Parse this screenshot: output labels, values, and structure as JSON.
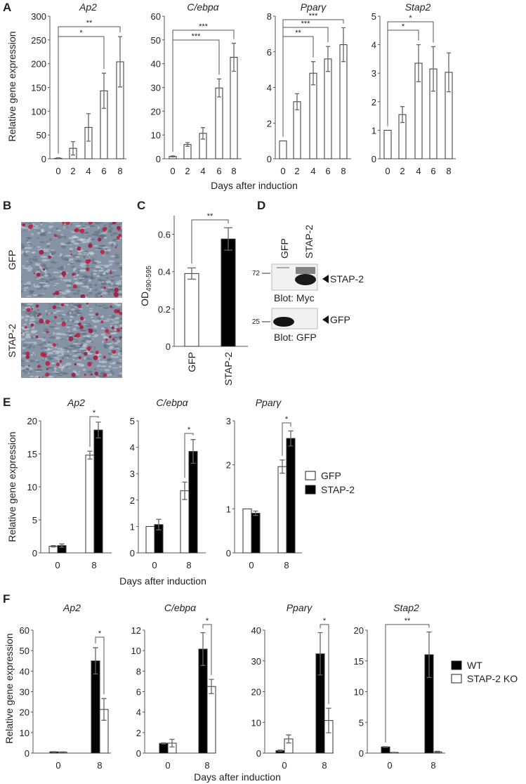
{
  "panels": {
    "A": {
      "label": "A",
      "ylabel": "Relative gene expression",
      "xlabel": "Days after induction"
    },
    "B": {
      "label": "B",
      "images": [
        "GFP",
        "STAP-2"
      ]
    },
    "C": {
      "label": "C",
      "ylabel": "OD",
      "ylabel_sub": "490-595"
    },
    "D": {
      "label": "D",
      "lanes": [
        "GFP",
        "STAP-2"
      ],
      "blots": [
        {
          "marker": "72",
          "band": "STAP-2",
          "caption": "Blot: Myc"
        },
        {
          "marker": "25",
          "band": "GFP",
          "caption": "Blot: GFP"
        }
      ]
    },
    "E": {
      "label": "E",
      "ylabel": "Relative gene expression",
      "xlabel": "Days after induction",
      "legend": [
        {
          "name": "GFP",
          "color": "#ffffff"
        },
        {
          "name": "STAP-2",
          "color": "#000000"
        }
      ]
    },
    "F": {
      "label": "F",
      "ylabel": "Relative gene expression",
      "xlabel": "Days after induction",
      "legend": [
        {
          "name": "WT",
          "color": "#000000"
        },
        {
          "name": "STAP-2 KO",
          "color": "#ffffff"
        }
      ]
    }
  },
  "chart_data": [
    {
      "panel": "A",
      "type": "bar",
      "title": "Ap2",
      "categories": [
        "0",
        "2",
        "4",
        "6",
        "8"
      ],
      "ylim": [
        0,
        300
      ],
      "ystep": 50,
      "series": [
        {
          "color": "#ffffff",
          "values": [
            1,
            22,
            66,
            143,
            204
          ],
          "errors": [
            1,
            14,
            29,
            37,
            53
          ]
        }
      ],
      "significance": [
        {
          "a": [
            0,
            0
          ],
          "b": [
            4,
            0
          ],
          "label": "**"
        },
        {
          "a": [
            0,
            0
          ],
          "b": [
            3,
            0
          ],
          "label": "*"
        }
      ]
    },
    {
      "panel": "A",
      "type": "bar",
      "title": "C/ebpα",
      "categories": [
        "0",
        "2",
        "4",
        "6",
        "8"
      ],
      "ylim": [
        0,
        60
      ],
      "ystep": 10,
      "series": [
        {
          "color": "#ffffff",
          "values": [
            1,
            6,
            10.7,
            29.8,
            42.7
          ],
          "errors": [
            0.2,
            0.8,
            2.4,
            3.8,
            5.9
          ]
        }
      ],
      "significance": [
        {
          "a": [
            0,
            0
          ],
          "b": [
            4,
            0
          ],
          "label": "***"
        },
        {
          "a": [
            0,
            0
          ],
          "b": [
            3,
            0
          ],
          "label": "***"
        }
      ]
    },
    {
      "panel": "A",
      "type": "bar",
      "title": "Pparγ",
      "categories": [
        "0",
        "2",
        "4",
        "6",
        "8"
      ],
      "ylim": [
        0,
        8
      ],
      "ystep": 2,
      "series": [
        {
          "color": "#ffffff",
          "values": [
            1,
            3.2,
            4.8,
            5.6,
            6.4
          ],
          "errors": [
            0,
            0.45,
            0.65,
            0.7,
            0.95
          ]
        }
      ],
      "significance": [
        {
          "a": [
            0,
            0
          ],
          "b": [
            4,
            0
          ],
          "label": "***"
        },
        {
          "a": [
            0,
            0
          ],
          "b": [
            3,
            0
          ],
          "label": "***"
        },
        {
          "a": [
            0,
            0
          ],
          "b": [
            2,
            0
          ],
          "label": "**"
        }
      ]
    },
    {
      "panel": "A",
      "type": "bar",
      "title": "Stap2",
      "categories": [
        "0",
        "2",
        "4",
        "6",
        "8"
      ],
      "ylim": [
        0,
        5
      ],
      "ystep": 1,
      "series": [
        {
          "color": "#ffffff",
          "values": [
            1,
            1.55,
            3.35,
            3.15,
            3.03
          ],
          "errors": [
            0,
            0.28,
            0.65,
            0.78,
            0.68
          ]
        }
      ],
      "significance": [
        {
          "a": [
            0,
            0
          ],
          "b": [
            3,
            0
          ],
          "label": "*"
        },
        {
          "a": [
            0,
            0
          ],
          "b": [
            2,
            0
          ],
          "label": "*"
        }
      ]
    },
    {
      "panel": "C",
      "type": "bar",
      "title": "",
      "categories": [
        "GFP",
        "STAP-2"
      ],
      "ylim": [
        0,
        0.7
      ],
      "ystep": 0.2,
      "per_bar_colors": [
        "#ffffff",
        "#000000"
      ],
      "series": [
        {
          "color": "#ffffff",
          "values": [
            0.39,
            0.575
          ],
          "errors": [
            0.03,
            0.06
          ]
        }
      ],
      "significance": [
        {
          "a": [
            0,
            0
          ],
          "b": [
            1,
            0
          ],
          "label": "**"
        }
      ]
    },
    {
      "panel": "E",
      "type": "bar",
      "title": "Ap2",
      "categories": [
        "0",
        "8"
      ],
      "ylim": [
        0,
        20
      ],
      "ystep": 5,
      "series": [
        {
          "name": "GFP",
          "color": "#ffffff",
          "values": [
            1,
            14.8
          ],
          "errors": [
            0.1,
            0.6
          ]
        },
        {
          "name": "STAP-2",
          "color": "#000000",
          "values": [
            1.1,
            18.6
          ],
          "errors": [
            0.25,
            1.2
          ]
        }
      ],
      "significance": [
        {
          "a": [
            1,
            0
          ],
          "b": [
            1,
            1
          ],
          "label": "*"
        }
      ]
    },
    {
      "panel": "E",
      "type": "bar",
      "title": "C/ebpα",
      "categories": [
        "0",
        "8"
      ],
      "ylim": [
        0,
        5
      ],
      "ystep": 1,
      "series": [
        {
          "name": "GFP",
          "color": "#ffffff",
          "values": [
            1,
            2.35
          ],
          "errors": [
            0,
            0.33
          ]
        },
        {
          "name": "STAP-2",
          "color": "#000000",
          "values": [
            1.07,
            3.84
          ],
          "errors": [
            0.2,
            0.45
          ]
        }
      ],
      "significance": [
        {
          "a": [
            1,
            0
          ],
          "b": [
            1,
            1
          ],
          "label": "*"
        }
      ]
    },
    {
      "panel": "E",
      "type": "bar",
      "title": "Pparγ",
      "categories": [
        "0",
        "8"
      ],
      "ylim": [
        0,
        3
      ],
      "ystep": 1,
      "series": [
        {
          "name": "GFP",
          "color": "#ffffff",
          "values": [
            1,
            1.96
          ],
          "errors": [
            0,
            0.15
          ]
        },
        {
          "name": "STAP-2",
          "color": "#000000",
          "values": [
            0.9,
            2.6
          ],
          "errors": [
            0.05,
            0.17
          ]
        }
      ],
      "significance": [
        {
          "a": [
            1,
            0
          ],
          "b": [
            1,
            1
          ],
          "label": "*"
        }
      ]
    },
    {
      "panel": "F",
      "type": "bar",
      "title": "Ap2",
      "categories": [
        "0",
        "8"
      ],
      "ylim": [
        0,
        60
      ],
      "ystep": 10,
      "series": [
        {
          "name": "WT",
          "color": "#000000",
          "values": [
            0.6,
            45
          ],
          "errors": [
            0.1,
            6.4
          ]
        },
        {
          "name": "STAP-2 KO",
          "color": "#ffffff",
          "values": [
            0.5,
            21.3
          ],
          "errors": [
            0.1,
            5.3
          ]
        }
      ],
      "significance": [
        {
          "a": [
            1,
            0
          ],
          "b": [
            1,
            1
          ],
          "label": "*"
        }
      ]
    },
    {
      "panel": "F",
      "type": "bar",
      "title": "C/ebpα",
      "categories": [
        "0",
        "8"
      ],
      "ylim": [
        0,
        12
      ],
      "ystep": 2,
      "series": [
        {
          "name": "WT",
          "color": "#000000",
          "values": [
            0.95,
            10.15
          ],
          "errors": [
            0.05,
            1.6
          ]
        },
        {
          "name": "STAP-2 KO",
          "color": "#ffffff",
          "values": [
            0.97,
            6.5
          ],
          "errors": [
            0.37,
            0.7
          ]
        }
      ],
      "significance": [
        {
          "a": [
            1,
            0
          ],
          "b": [
            1,
            1
          ],
          "label": "*"
        }
      ]
    },
    {
      "panel": "F",
      "type": "bar",
      "title": "Pparγ",
      "categories": [
        "0",
        "8"
      ],
      "ylim": [
        0,
        40
      ],
      "ystep": 10,
      "series": [
        {
          "name": "WT",
          "color": "#000000",
          "values": [
            0.8,
            32.3
          ],
          "errors": [
            0.2,
            6.9
          ]
        },
        {
          "name": "STAP-2 KO",
          "color": "#ffffff",
          "values": [
            4.6,
            10.6
          ],
          "errors": [
            1.3,
            4
          ]
        }
      ],
      "significance": [
        {
          "a": [
            1,
            0
          ],
          "b": [
            1,
            1
          ],
          "label": "*"
        }
      ]
    },
    {
      "panel": "F",
      "type": "bar",
      "title": "Stap2",
      "categories": [
        "0",
        "8"
      ],
      "ylim": [
        0,
        20
      ],
      "ystep": 5,
      "series": [
        {
          "name": "WT",
          "color": "#000000",
          "values": [
            1,
            16
          ],
          "errors": [
            0.05,
            3.7
          ]
        },
        {
          "name": "STAP-2 KO",
          "color": "#ffffff",
          "values": [
            0.1,
            0.2
          ],
          "errors": [
            0.02,
            0.1
          ]
        }
      ],
      "significance": [
        {
          "a": [
            0,
            0
          ],
          "b": [
            1,
            0
          ],
          "label": "**"
        }
      ]
    }
  ]
}
